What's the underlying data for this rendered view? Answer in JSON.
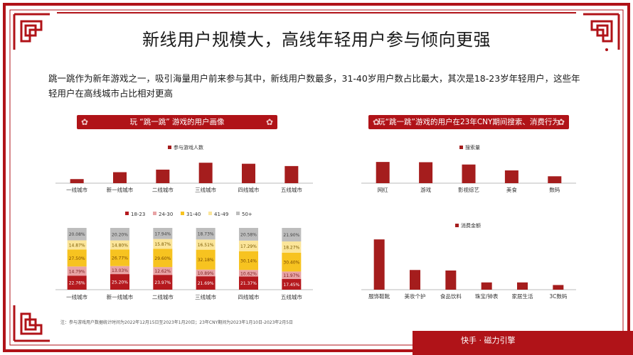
{
  "page": {
    "title": "新线用户规模大，高线年轻用户参与倾向更强",
    "intro": "跳一跳作为新年游戏之一，吸引海量用户前来参与其中，新线用户数最多，31-40岁用户数占比最大，其次是18-23岁年轻用户，这些年轻用户在高线城市占比相对更高",
    "left_section_title": "玩 “跳一跳” 游戏的用户画像",
    "right_section_title": "玩“跳一跳”游戏的用户在23年CNY期间搜索、消费行为",
    "note": "注：参与游戏用户数据统计时间为2022年12月15日至2023年1月20日；23年CNY期间为2023年1月10日-2023年2月5日",
    "footer": "快手 · 磁力引擎"
  },
  "colors": {
    "brand_red": "#b01318",
    "bar_red": "#a51d1d",
    "seg_18_23": "#b5191e",
    "seg_24_30": "#e8a3a5",
    "seg_31_40": "#f7c320",
    "seg_41_49": "#fbe59a",
    "seg_50plus": "#bdbdbd"
  },
  "chart_data": [
    {
      "type": "bar",
      "categories": [
        "一线城市",
        "新一线城市",
        "二线城市",
        "三线城市",
        "四线城市",
        "五线城市"
      ],
      "series": [
        {
          "name": "参与游戏人数",
          "values": [
            0.16,
            0.43,
            0.53,
            0.8,
            0.76,
            0.67
          ]
        }
      ],
      "ylim": [
        0,
        1
      ],
      "legend": "top-center",
      "grid": false
    },
    {
      "type": "bar",
      "stacked": true,
      "categories": [
        "一线城市",
        "新一线城市",
        "二线城市",
        "三线城市",
        "四线城市",
        "五线城市"
      ],
      "series": [
        {
          "name": "18-23",
          "values": [
            22.76,
            25.2,
            23.97,
            21.69,
            21.37,
            17.45
          ]
        },
        {
          "name": "24-30",
          "values": [
            14.79,
            13.03,
            12.62,
            10.89,
            10.62,
            11.97
          ]
        },
        {
          "name": "31-40",
          "values": [
            27.5,
            26.77,
            29.6,
            32.18,
            30.14,
            30.4
          ]
        },
        {
          "name": "41-49",
          "values": [
            14.87,
            14.8,
            15.87,
            16.51,
            17.29,
            18.27
          ]
        },
        {
          "name": "50+",
          "values": [
            20.08,
            20.2,
            17.94,
            18.73,
            20.58,
            21.9
          ]
        }
      ],
      "data_labels": [
        [
          "22.76%",
          "14.79%",
          "27.50%",
          "14.87%",
          "20.08%"
        ],
        [
          "25.20%",
          "13.03%",
          "26.77%",
          "14.80%",
          "20.20%"
        ],
        [
          "23.97%",
          "12.62%",
          "29.60%",
          "15.87%",
          "17.94%"
        ],
        [
          "21.69%",
          "10.89%",
          "32.18%",
          "16.51%",
          "18.73%"
        ],
        [
          "21.37%",
          "10.62%",
          "30.14%",
          "17.29%",
          "20.58%"
        ],
        [
          "17.45%",
          "11.97%",
          "30.40%",
          "18.27%",
          "21.90%"
        ]
      ],
      "ylim": [
        0,
        100
      ],
      "legend": "top-left",
      "grid": false
    },
    {
      "type": "bar",
      "categories": [
        "网红",
        "游戏",
        "影视综艺",
        "美食",
        "数码"
      ],
      "series": [
        {
          "name": "搜索量",
          "values": [
            0.83,
            0.82,
            0.73,
            0.5,
            0.27
          ]
        }
      ],
      "ylim": [
        0,
        1
      ],
      "legend": "top-center",
      "grid": false
    },
    {
      "type": "bar",
      "categories": [
        "服饰鞋靴",
        "美妆个护",
        "食品饮料",
        "珠宝/钟表",
        "家居生活",
        "3C数码"
      ],
      "series": [
        {
          "name": "消费金额",
          "values": [
            0.97,
            0.38,
            0.37,
            0.14,
            0.14,
            0.09
          ]
        }
      ],
      "ylim": [
        0,
        1
      ],
      "legend": "top-center",
      "grid": false
    }
  ]
}
